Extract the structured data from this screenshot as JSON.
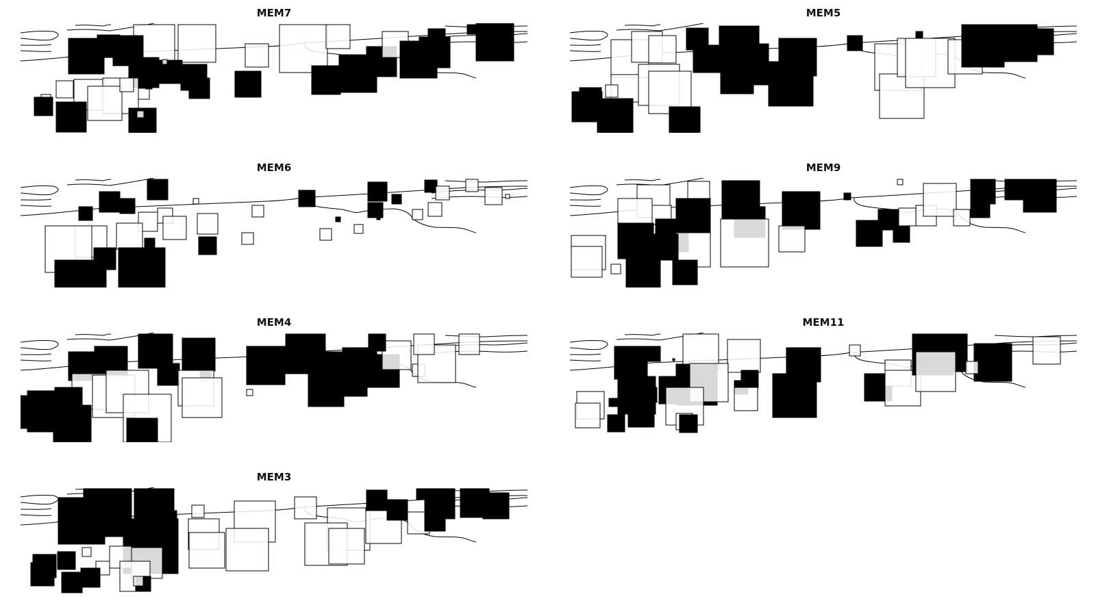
{
  "figure": {
    "panels": [
      {
        "title": "MEM7"
      },
      {
        "title": "MEM5"
      },
      {
        "title": "MEM6"
      },
      {
        "title": "MEM9"
      },
      {
        "title": "MEM4"
      },
      {
        "title": "MEM11"
      },
      {
        "title": "MEM3"
      }
    ]
  },
  "colors": {
    "positive": "#000000",
    "negative": "#ffffff",
    "outline": "#000000",
    "background": "#ffffff"
  }
}
